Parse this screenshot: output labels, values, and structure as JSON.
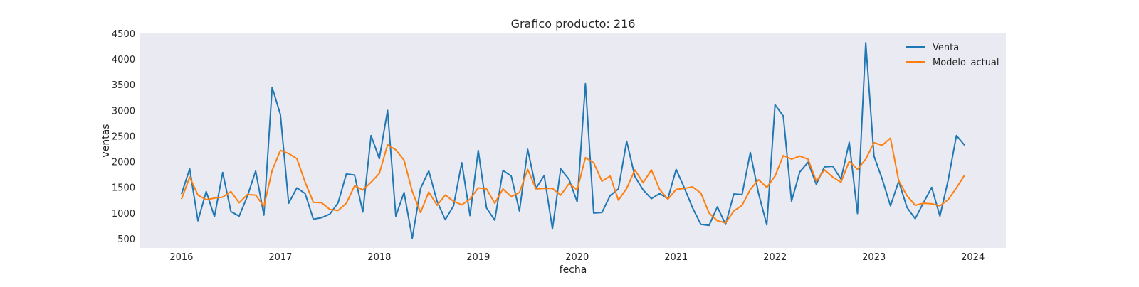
{
  "chart_data": {
    "type": "line",
    "title": "Grafico producto: 216",
    "xlabel": "fecha",
    "ylabel": "ventas",
    "xlim": [
      "2015-08-01",
      "2024-05-01"
    ],
    "ylim": [
      320,
      4500
    ],
    "x_ticks": [
      "2016",
      "2017",
      "2018",
      "2019",
      "2020",
      "2021",
      "2022",
      "2023",
      "2024"
    ],
    "y_ticks": [
      500,
      1000,
      1500,
      2000,
      2500,
      3000,
      3500,
      4000,
      4500
    ],
    "grid": false,
    "legend_position": "top-right",
    "x": [
      "2016-01",
      "2016-02",
      "2016-03",
      "2016-04",
      "2016-05",
      "2016-06",
      "2016-07",
      "2016-08",
      "2016-09",
      "2016-10",
      "2016-11",
      "2016-12",
      "2017-01",
      "2017-02",
      "2017-03",
      "2017-04",
      "2017-05",
      "2017-06",
      "2017-07",
      "2017-08",
      "2017-09",
      "2017-10",
      "2017-11",
      "2017-12",
      "2018-01",
      "2018-02",
      "2018-03",
      "2018-04",
      "2018-05",
      "2018-06",
      "2018-07",
      "2018-08",
      "2018-09",
      "2018-10",
      "2018-11",
      "2018-12",
      "2019-01",
      "2019-02",
      "2019-03",
      "2019-04",
      "2019-05",
      "2019-06",
      "2019-07",
      "2019-08",
      "2019-09",
      "2019-10",
      "2019-11",
      "2019-12",
      "2020-01",
      "2020-02",
      "2020-03",
      "2020-04",
      "2020-05",
      "2020-06",
      "2020-07",
      "2020-08",
      "2020-09",
      "2020-10",
      "2020-11",
      "2020-12",
      "2021-01",
      "2021-02",
      "2021-03",
      "2021-04",
      "2021-05",
      "2021-06",
      "2021-07",
      "2021-08",
      "2021-09",
      "2021-10",
      "2021-11",
      "2021-12",
      "2022-01",
      "2022-02",
      "2022-03",
      "2022-04",
      "2022-05",
      "2022-06",
      "2022-07",
      "2022-08",
      "2022-09",
      "2022-10",
      "2022-11",
      "2022-12",
      "2023-01",
      "2023-02",
      "2023-03",
      "2023-04",
      "2023-05",
      "2023-06",
      "2023-07",
      "2023-08",
      "2023-09",
      "2023-10",
      "2023-11",
      "2023-12"
    ],
    "series": [
      {
        "name": "Venta",
        "color": "#1f77b4",
        "values": [
          1370,
          1860,
          850,
          1420,
          930,
          1790,
          1030,
          940,
          1330,
          1820,
          960,
          3450,
          2920,
          1190,
          1490,
          1380,
          880,
          910,
          980,
          1200,
          1760,
          1740,
          1020,
          2510,
          2060,
          3000,
          940,
          1400,
          510,
          1480,
          1820,
          1230,
          870,
          1140,
          1980,
          950,
          2220,
          1100,
          860,
          1830,
          1720,
          1040,
          2240,
          1480,
          1730,
          690,
          1860,
          1660,
          1220,
          3520,
          1000,
          1010,
          1340,
          1470,
          2400,
          1710,
          1450,
          1280,
          1380,
          1280,
          1850,
          1490,
          1100,
          780,
          760,
          1120,
          780,
          1370,
          1360,
          2180,
          1380,
          770,
          3110,
          2890,
          1230,
          1800,
          1990,
          1560,
          1900,
          1910,
          1660,
          2380,
          990,
          4320,
          2110,
          1660,
          1140,
          1620,
          1110,
          890,
          1200,
          1500,
          940,
          1640,
          2510,
          2320
        ]
      },
      {
        "name": "Modelo_actual",
        "color": "#ff7f0e",
        "values": [
          1270,
          1700,
          1350,
          1260,
          1290,
          1310,
          1420,
          1200,
          1360,
          1350,
          1130,
          1830,
          2220,
          2160,
          2060,
          1600,
          1210,
          1200,
          1070,
          1050,
          1190,
          1530,
          1450,
          1600,
          1770,
          2330,
          2230,
          2030,
          1420,
          1010,
          1410,
          1150,
          1350,
          1230,
          1160,
          1270,
          1490,
          1470,
          1190,
          1470,
          1320,
          1400,
          1850,
          1470,
          1480,
          1480,
          1350,
          1570,
          1450,
          2080,
          1980,
          1620,
          1720,
          1250,
          1480,
          1840,
          1590,
          1840,
          1460,
          1270,
          1460,
          1480,
          1510,
          1390,
          1000,
          850,
          810,
          1040,
          1150,
          1460,
          1650,
          1500,
          1720,
          2120,
          2050,
          2110,
          2050,
          1620,
          1840,
          1700,
          1600,
          2010,
          1850,
          2050,
          2370,
          2320,
          2460,
          1630,
          1340,
          1150,
          1190,
          1180,
          1140,
          1260,
          1490,
          1740
        ]
      }
    ]
  }
}
